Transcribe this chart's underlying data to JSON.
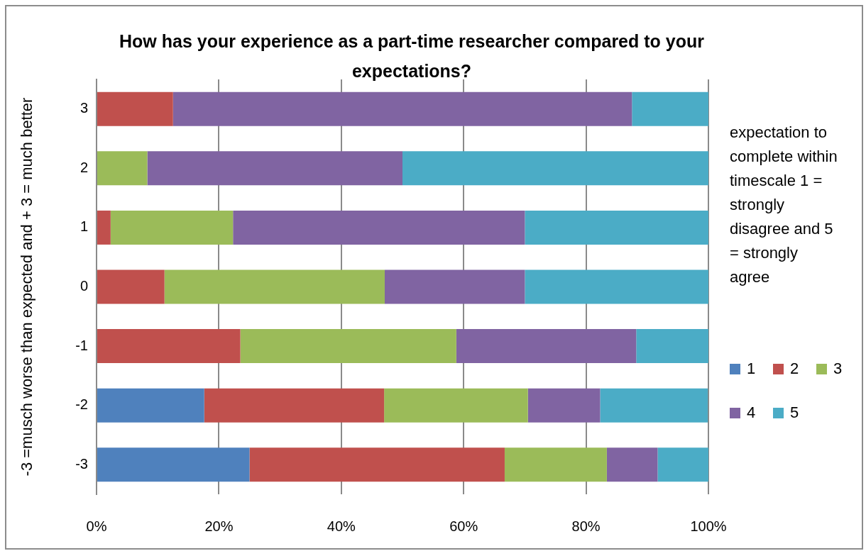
{
  "chart_data": {
    "type": "bar",
    "orientation": "horizontal",
    "stacked": true,
    "title": "How has your experience as a part-time researcher compared to your expectations?",
    "ylabel": "-3 =musch worse than expected and + 3 = much better",
    "legend_title": "expectation to complete within timescale 1 = strongly disagree and 5 = strongly agree",
    "legend": "right",
    "grid": "x",
    "categories": [
      "3",
      "2",
      "1",
      "0",
      "-1",
      "-2",
      "-3"
    ],
    "xlim": [
      0,
      100
    ],
    "xticks": [
      {
        "value": 0,
        "label": "0%"
      },
      {
        "value": 20,
        "label": "20%"
      },
      {
        "value": 40,
        "label": "40%"
      },
      {
        "value": 60,
        "label": "60%"
      },
      {
        "value": 80,
        "label": "80%"
      },
      {
        "value": 100,
        "label": "100%"
      }
    ],
    "series": [
      {
        "name": "1",
        "color": "#4f81bd",
        "values": [
          0,
          0,
          0,
          0,
          0,
          17.6,
          25
        ]
      },
      {
        "name": "2",
        "color": "#c0504d",
        "values": [
          12.5,
          0,
          2.3,
          11.1,
          23.5,
          29.4,
          41.7
        ]
      },
      {
        "name": "3",
        "color": "#9bbb59",
        "values": [
          0,
          8.3,
          20,
          36,
          35.3,
          23.5,
          16.7
        ]
      },
      {
        "name": "4",
        "color": "#8064a2",
        "values": [
          75,
          41.7,
          47.7,
          22.9,
          29.4,
          11.8,
          8.3
        ]
      },
      {
        "name": "5",
        "color": "#4bacc6",
        "values": [
          12.5,
          50,
          30,
          30,
          11.8,
          17.6,
          8.3
        ]
      }
    ]
  }
}
